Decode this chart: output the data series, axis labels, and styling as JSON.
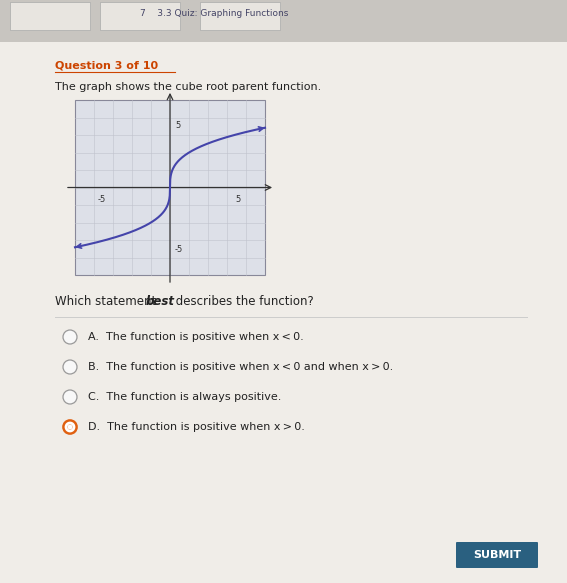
{
  "outer_bg": "#b8b8b8",
  "content_bg": "#f0ede8",
  "top_strip_bg": "#c8c5c0",
  "top_tab_bg": "#dddad5",
  "top_text": "7    3.3 Quiz: Graphing Functions",
  "top_text_color": "#444466",
  "question_label": "Question 3 of 10",
  "question_label_color": "#cc4400",
  "question_label_underline": true,
  "question_text": "The graph shows the cube root parent function.",
  "question_text_color": "#222222",
  "graph_bg": "#dde0e8",
  "graph_border_color": "#888899",
  "graph_grid_color": "#c0c2cc",
  "graph_axis_color": "#333333",
  "graph_line_color": "#4444aa",
  "graph_xlim": [
    -7,
    7
  ],
  "graph_ylim": [
    -7,
    7
  ],
  "graph_tick_neg": "-5",
  "graph_tick_pos": "5",
  "graph_tick_neg_y": "-5",
  "graph_tick_pos_y": "5",
  "which_text1": "Which statement ",
  "which_text_bold": "best",
  "which_text2": " describes the function?",
  "which_text_color": "#222222",
  "separator_color": "#cccccc",
  "options": [
    {
      "letter": "A",
      "text": "The function is positive when x < 0."
    },
    {
      "letter": "B",
      "text": "The function is positive when x < 0 and when x > 0."
    },
    {
      "letter": "C",
      "text": "The function is always positive."
    },
    {
      "letter": "D",
      "text": "The function is positive when x > 0."
    }
  ],
  "selected_option": 3,
  "selected_fill": "#e06010",
  "selected_border": "#e06010",
  "unselected_fill": "#f8f8f8",
  "unselected_border": "#999999",
  "option_text_color": "#222222",
  "submit_bg": "#2a6080",
  "submit_text": "SUBMIT",
  "submit_text_color": "#ffffff"
}
